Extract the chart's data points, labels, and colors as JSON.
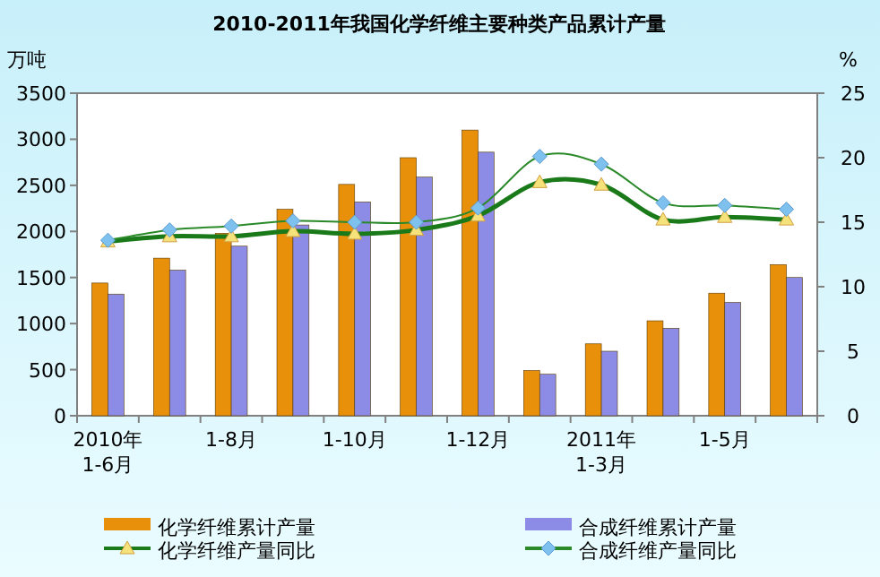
{
  "chart_data": {
    "type": "bar",
    "title": "2010-2011年我国化学纤维主要种类产品累计产量",
    "ylabel": "万吨",
    "y2label": "%",
    "categories": [
      "2010年\n1-6月",
      null,
      "1-8月",
      null,
      "1-10月",
      null,
      "1-12月",
      null,
      "2011年\n1-3月",
      null,
      "1-5月",
      null
    ],
    "series": [
      {
        "name": "化学纤维累计产量",
        "color": "#e8900a",
        "values": [
          1440,
          1710,
          1980,
          2240,
          2510,
          2800,
          3100,
          490,
          780,
          1030,
          1330,
          1640
        ]
      },
      {
        "name": "合成纤维累计产量",
        "color": "#8c8ce6",
        "values": [
          1320,
          1580,
          1840,
          2070,
          2320,
          2590,
          2860,
          450,
          700,
          950,
          1230,
          1500
        ]
      },
      {
        "name": "化学纤维产量同比",
        "type": "line",
        "axis": "y2",
        "color": "#1a7a1a",
        "marker": "triangle",
        "values": [
          13.5,
          13.9,
          13.9,
          14.3,
          14.1,
          14.4,
          15.5,
          18.1,
          17.9,
          15.2,
          15.4,
          15.2
        ]
      },
      {
        "name": "合成纤维产量同比",
        "type": "line",
        "axis": "y2",
        "color": "#2a8a2a",
        "marker": "diamond",
        "values": [
          13.6,
          14.4,
          14.7,
          15.1,
          15.0,
          15.0,
          16.1,
          20.1,
          19.5,
          16.5,
          16.3,
          16.0
        ]
      }
    ],
    "ylim": [
      0,
      3500
    ],
    "yticks": [
      0,
      500,
      1000,
      1500,
      2000,
      2500,
      3000,
      3500
    ],
    "y2lim": [
      0,
      25
    ],
    "y2ticks": [
      0,
      5,
      10,
      15,
      20,
      25
    ],
    "grid": false,
    "legend": "bottom"
  }
}
